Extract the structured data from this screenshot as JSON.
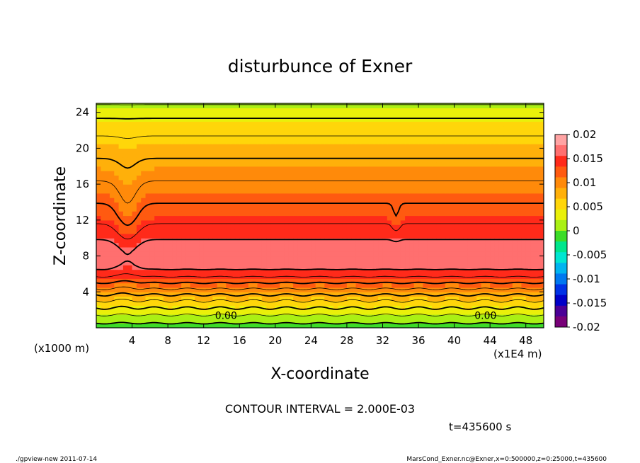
{
  "chart_data": {
    "type": "heatmap",
    "title": "disturbunce of Exner",
    "xlabel": "X-coordinate",
    "ylabel": "Z-coordinate",
    "x_unit": "(x1E4 m)",
    "y_unit": "(x1000 m)",
    "xlim": [
      0,
      50
    ],
    "ylim": [
      0,
      25
    ],
    "x_ticks": [
      4,
      8,
      12,
      16,
      20,
      24,
      28,
      32,
      36,
      40,
      44,
      48
    ],
    "y_ticks": [
      4,
      8,
      12,
      16,
      20,
      24
    ],
    "x_tick_labels": [
      "4",
      "8",
      "12",
      "16",
      "20",
      "24",
      "28",
      "32",
      "36",
      "40",
      "44",
      "48"
    ],
    "y_tick_labels": [
      "4",
      "8",
      "12",
      "16",
      "20",
      "24"
    ],
    "colorbar": {
      "min": -0.02,
      "max": 0.02,
      "step": 0.0025,
      "labels": [
        "0.02",
        "0.015",
        "0.01",
        "0.005",
        "0",
        "-0.005",
        "-0.01",
        "-0.015",
        "-0.02"
      ],
      "colors": [
        "#ffa3a3",
        "#ff6f6f",
        "#ff2a1a",
        "#ff5a10",
        "#ff8a0a",
        "#ffb00a",
        "#ffd60a",
        "#eaf00a",
        "#aaf014",
        "#3cdc28",
        "#00e68c",
        "#00e6d2",
        "#00b4f0",
        "#0078f0",
        "#0032e6",
        "#0000c8",
        "#4b0096",
        "#780078"
      ]
    },
    "contour_interval": "CONTOUR INTERVAL = 2.000E-03",
    "contour_labels": [
      {
        "x": 14.5,
        "z": 1.0,
        "text": "0.00"
      },
      {
        "x": 43.5,
        "z": 1.0,
        "text": "0.00"
      }
    ],
    "vertical_profile": {
      "z": [
        0,
        0.5,
        1,
        1.5,
        2,
        2.5,
        3,
        3.5,
        4,
        4.5,
        5,
        5.5,
        6,
        6.5,
        7,
        7.5,
        8,
        8.5,
        9,
        9.5,
        10,
        10.5,
        11,
        11.5,
        12,
        12.5,
        13,
        13.5,
        14,
        14.5,
        15,
        15.5,
        16,
        16.5,
        17,
        17.5,
        18,
        18.5,
        19,
        19.5,
        20,
        20.5,
        21,
        21.5,
        22,
        22.5,
        23,
        23.5,
        24,
        24.5,
        25
      ],
      "value": [
        -0.001,
        0.0,
        0.001,
        0.0022,
        0.0035,
        0.0048,
        0.006,
        0.0075,
        0.009,
        0.0105,
        0.012,
        0.0135,
        0.0148,
        0.016,
        0.0168,
        0.0173,
        0.0175,
        0.0174,
        0.017,
        0.0164,
        0.0158,
        0.0152,
        0.0146,
        0.0141,
        0.0136,
        0.0131,
        0.0127,
        0.0123,
        0.0119,
        0.0115,
        0.0111,
        0.0107,
        0.0103,
        0.0099,
        0.0095,
        0.0091,
        0.0087,
        0.0083,
        0.0079,
        0.0075,
        0.0071,
        0.0067,
        0.0063,
        0.0059,
        0.0054,
        0.0049,
        0.0044,
        0.0038,
        0.0032,
        0.0025,
        0.0018
      ]
    },
    "grid": false
  },
  "footer": {
    "time": "t=435600 s",
    "left": "./gpview-new  2011-07-14",
    "right": "MarsCond_Exner.nc@Exner,x=0:500000,z=0:25000,t=435600"
  }
}
